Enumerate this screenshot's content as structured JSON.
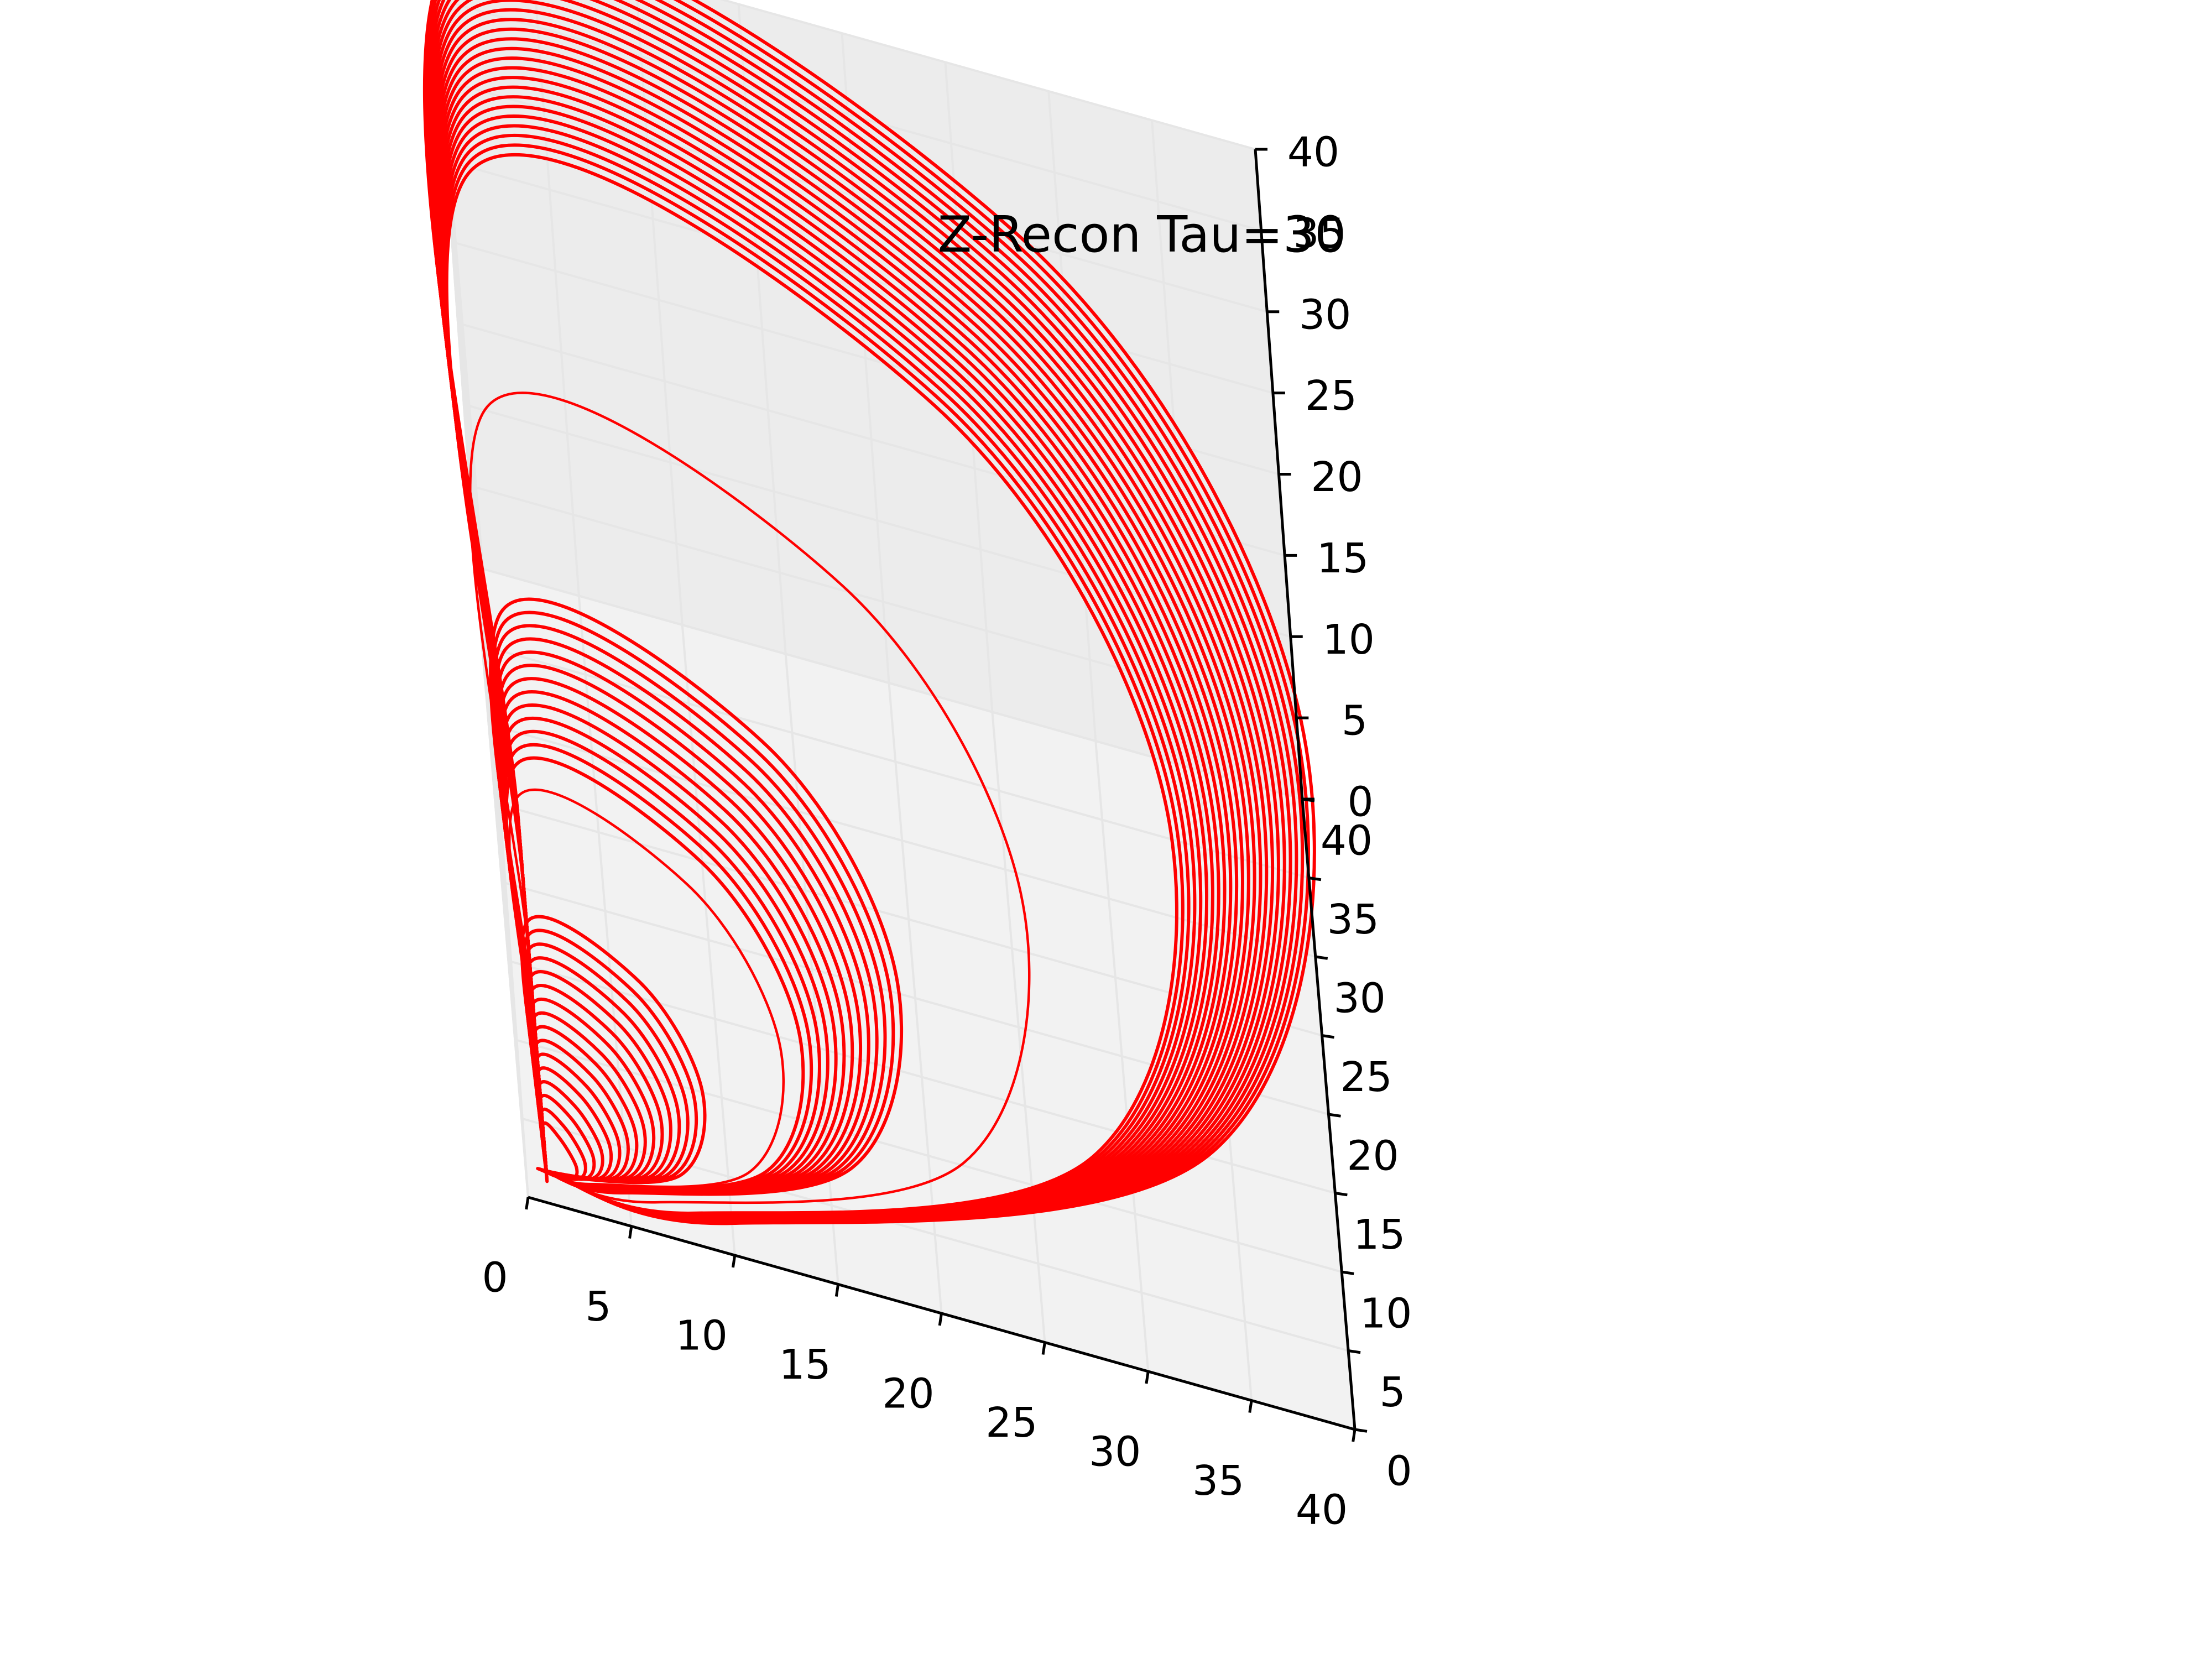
{
  "chart_data": {
    "type": "line",
    "projection": "3d",
    "title": "Z-Recon Tau=30",
    "xlabel": "",
    "ylabel": "",
    "zlabel": "",
    "xlim": [
      0,
      40
    ],
    "ylim": [
      0,
      40
    ],
    "zlim": [
      0,
      40
    ],
    "x_ticks": [
      "0",
      "5",
      "10",
      "15",
      "20",
      "25",
      "30",
      "35",
      "40"
    ],
    "y_ticks": [
      "0",
      "5",
      "10",
      "15",
      "20",
      "25",
      "30",
      "35",
      "40"
    ],
    "z_ticks": [
      "0",
      "5",
      "10",
      "15",
      "20",
      "25",
      "30",
      "35",
      "40"
    ],
    "grid": true,
    "legend": "none",
    "color": "#ff0000",
    "series": [
      {
        "description": "delay-embedded trajectory, x = z(t), y = z(t + tau), z = z(t + 2 tau); traced as loops grouped by peak amplitude",
        "loop_groups": [
          {
            "peak": 40.0,
            "count": 24,
            "spread": 7.0
          },
          {
            "peak": 25.5,
            "count": 1,
            "spread": 0.0
          },
          {
            "peak": 19.0,
            "count": 13,
            "spread": 5.0
          },
          {
            "peak": 13.0,
            "count": 1,
            "spread": 0.0
          },
          {
            "peak": 9.0,
            "count": 16,
            "spread": 6.5
          }
        ]
      }
    ]
  }
}
